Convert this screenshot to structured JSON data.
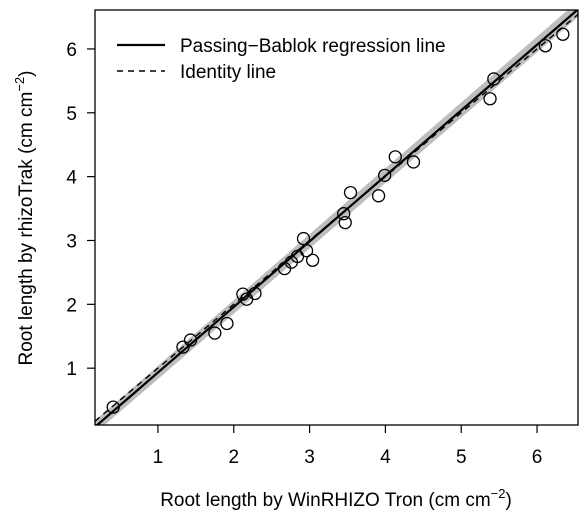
{
  "chart_data": {
    "type": "scatter",
    "x_label": {
      "text": "Root length by WinRHIZO Tron (cm cm",
      "superscript": "−2",
      "suffix": ")"
    },
    "y_label": {
      "text": "Root length by rhizoTrak (cm cm",
      "superscript": "−2",
      "suffix": ")"
    },
    "xlim": [
      0.17,
      6.54
    ],
    "ylim": [
      0.11,
      6.61
    ],
    "xticks": [
      1,
      2,
      3,
      4,
      5,
      6
    ],
    "yticks": [
      1,
      2,
      3,
      4,
      5,
      6
    ],
    "legend_position": "top-left",
    "series": [
      {
        "name": "points",
        "color": "#000000",
        "x": [
          0.41,
          1.33,
          1.43,
          1.75,
          1.91,
          2.12,
          2.17,
          2.28,
          2.67,
          2.76,
          2.84,
          2.92,
          2.96,
          3.04,
          3.45,
          3.47,
          3.54,
          3.91,
          3.99,
          4.13,
          4.37,
          5.38,
          5.43,
          6.11,
          6.34
        ],
        "values": [
          0.39,
          1.33,
          1.44,
          1.55,
          1.7,
          2.16,
          2.08,
          2.17,
          2.56,
          2.66,
          2.75,
          3.03,
          2.84,
          2.69,
          3.42,
          3.28,
          3.75,
          3.7,
          4.02,
          4.31,
          4.23,
          5.22,
          5.53,
          6.05,
          6.23
        ]
      }
    ],
    "lines": [
      {
        "name": "Passing−Bablok regression line",
        "dash": false,
        "color": "#000000",
        "x": [
          0.17,
          6.54
        ],
        "values": [
          0.08,
          6.62
        ]
      },
      {
        "name": "Identity line",
        "dash": true,
        "color": "#000000",
        "x": [
          0.17,
          6.54
        ],
        "values": [
          0.17,
          6.54
        ]
      }
    ],
    "band": {
      "color": "#bdbdbd",
      "x": [
        0.17,
        6.54
      ],
      "lower": [
        -0.02,
        6.5
      ],
      "upper": [
        0.18,
        6.75
      ]
    }
  }
}
